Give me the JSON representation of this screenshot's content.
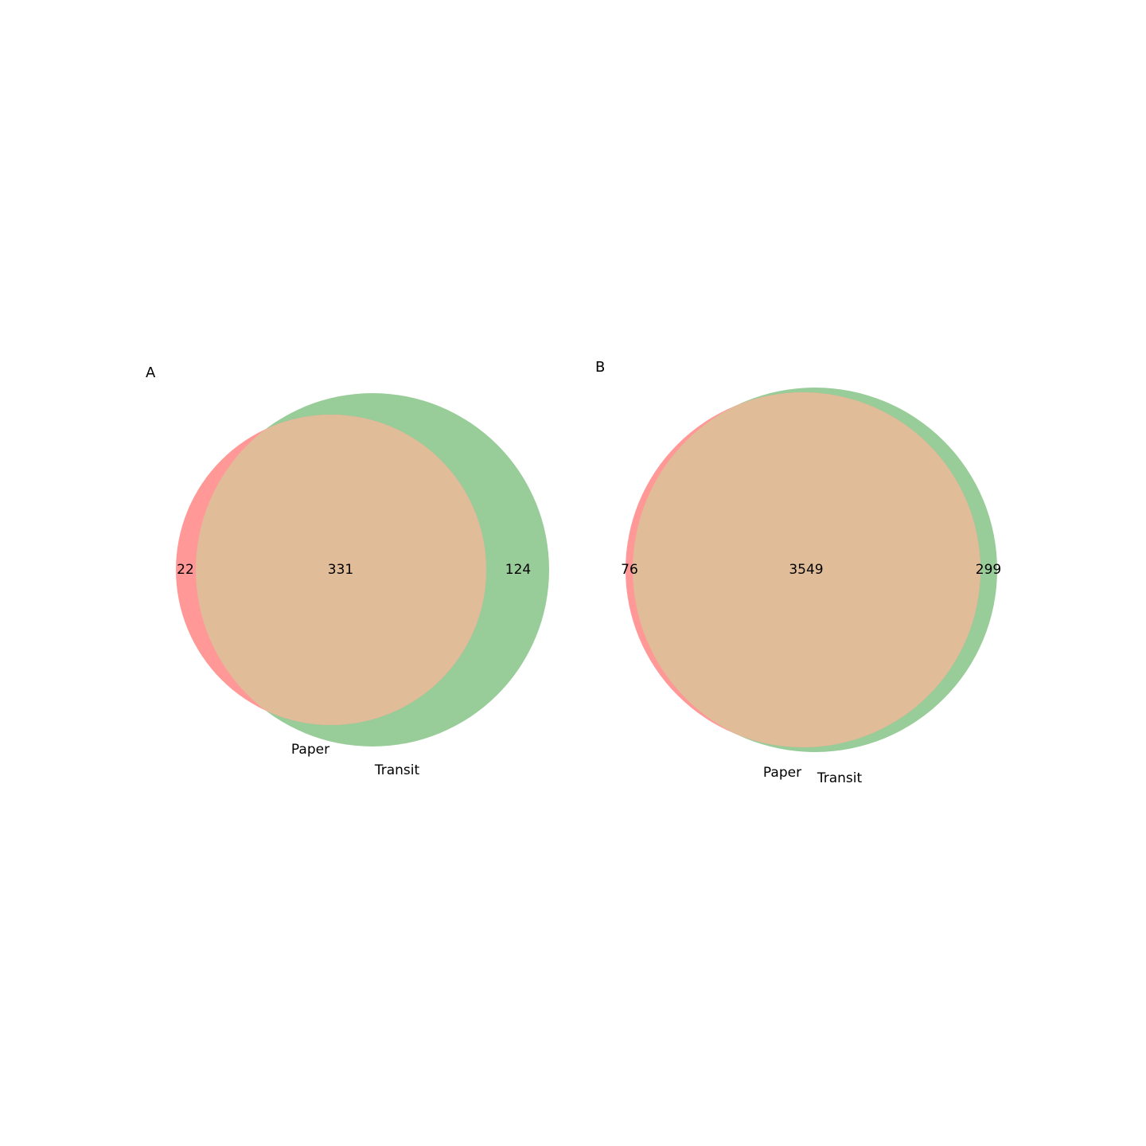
{
  "chart_data": [
    {
      "type": "venn",
      "panel_label": "A",
      "sets": [
        {
          "name": "Paper",
          "color": "#ff9896"
        },
        {
          "name": "Transit",
          "color": "#98cc98"
        }
      ],
      "intersection_color": "#e0bc98",
      "subsets": {
        "only_Paper": "22",
        "Paper_and_Transit": "331",
        "only_Transit": "124"
      }
    },
    {
      "type": "venn",
      "panel_label": "B",
      "sets": [
        {
          "name": "Paper",
          "color": "#ff9896"
        },
        {
          "name": "Transit",
          "color": "#98cc98"
        }
      ],
      "intersection_color": "#e0bc98",
      "subsets": {
        "only_Paper": "76",
        "Paper_and_Transit": "3549",
        "only_Transit": "299"
      }
    }
  ]
}
